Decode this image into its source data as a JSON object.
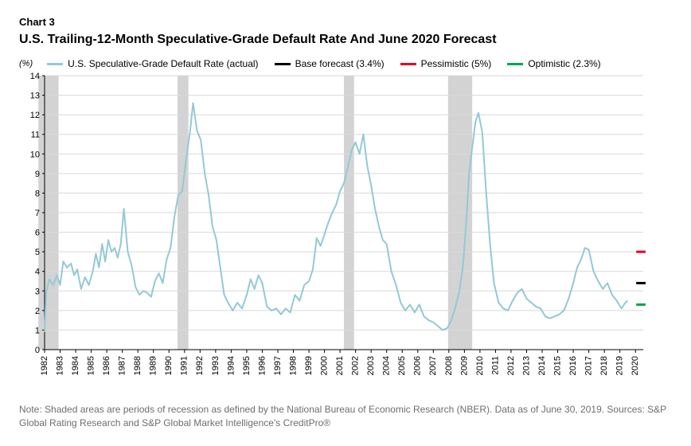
{
  "header": {
    "chart_label": "Chart 3",
    "title": "U.S. Trailing-12-Month Speculative-Grade Default Rate And June 2020 Forecast"
  },
  "legend": {
    "y_axis_unit": "(%)",
    "series_actual": "U.S. Speculative-Grade Default Rate (actual)",
    "base": "Base forecast (3.4%)",
    "pessimistic": "Pessimistic (5%)",
    "optimistic": "Optimistic (2.3%)"
  },
  "chart": {
    "type": "line",
    "background_color": "#ffffff",
    "grid_color": "#d9d9d9",
    "axis_color": "#000000",
    "tick_color": "#000000",
    "recession_band_color": "#d3d3d3",
    "line_color": "#93c9d6",
    "line_width": 2,
    "ylim": [
      0,
      14
    ],
    "ytick_step": 1,
    "x_start_year": 1982,
    "x_end_year": 2020.5,
    "x_ticks": [
      1982,
      1983,
      1984,
      1985,
      1986,
      1987,
      1988,
      1989,
      1990,
      1991,
      1992,
      1993,
      1994,
      1995,
      1996,
      1997,
      1998,
      1999,
      2000,
      2001,
      2002,
      2003,
      2004,
      2005,
      2006,
      2007,
      2008,
      2009,
      2010,
      2011,
      2012,
      2013,
      2014,
      2015,
      2016,
      2017,
      2018,
      2019,
      2020
    ],
    "tick_fontsize": 11,
    "recessions": [
      {
        "start": 1981.6,
        "end": 1982.9
      },
      {
        "start": 1990.55,
        "end": 1991.25
      },
      {
        "start": 2001.25,
        "end": 2001.9
      },
      {
        "start": 2007.95,
        "end": 2009.5
      }
    ],
    "series_actual": [
      {
        "x": 1982.0,
        "y": 0.9
      },
      {
        "x": 1982.1,
        "y": 2.9
      },
      {
        "x": 1982.3,
        "y": 3.6
      },
      {
        "x": 1982.55,
        "y": 3.3
      },
      {
        "x": 1982.8,
        "y": 3.8
      },
      {
        "x": 1983.0,
        "y": 3.3
      },
      {
        "x": 1983.2,
        "y": 4.5
      },
      {
        "x": 1983.45,
        "y": 4.2
      },
      {
        "x": 1983.7,
        "y": 4.4
      },
      {
        "x": 1983.9,
        "y": 3.8
      },
      {
        "x": 1984.1,
        "y": 4.1
      },
      {
        "x": 1984.35,
        "y": 3.1
      },
      {
        "x": 1984.6,
        "y": 3.7
      },
      {
        "x": 1984.85,
        "y": 3.3
      },
      {
        "x": 1985.1,
        "y": 4.0
      },
      {
        "x": 1985.3,
        "y": 4.9
      },
      {
        "x": 1985.5,
        "y": 4.2
      },
      {
        "x": 1985.7,
        "y": 5.4
      },
      {
        "x": 1985.9,
        "y": 4.5
      },
      {
        "x": 1986.1,
        "y": 5.6
      },
      {
        "x": 1986.3,
        "y": 5.0
      },
      {
        "x": 1986.5,
        "y": 5.2
      },
      {
        "x": 1986.7,
        "y": 4.7
      },
      {
        "x": 1986.9,
        "y": 5.4
      },
      {
        "x": 1987.1,
        "y": 7.2
      },
      {
        "x": 1987.35,
        "y": 5.0
      },
      {
        "x": 1987.6,
        "y": 4.3
      },
      {
        "x": 1987.85,
        "y": 3.2
      },
      {
        "x": 1988.1,
        "y": 2.8
      },
      {
        "x": 1988.35,
        "y": 3.0
      },
      {
        "x": 1988.6,
        "y": 2.9
      },
      {
        "x": 1988.85,
        "y": 2.7
      },
      {
        "x": 1989.1,
        "y": 3.5
      },
      {
        "x": 1989.35,
        "y": 3.9
      },
      {
        "x": 1989.6,
        "y": 3.4
      },
      {
        "x": 1989.85,
        "y": 4.6
      },
      {
        "x": 1990.1,
        "y": 5.2
      },
      {
        "x": 1990.35,
        "y": 6.8
      },
      {
        "x": 1990.6,
        "y": 7.9
      },
      {
        "x": 1990.85,
        "y": 8.1
      },
      {
        "x": 1991.1,
        "y": 9.7
      },
      {
        "x": 1991.35,
        "y": 11.1
      },
      {
        "x": 1991.55,
        "y": 12.6
      },
      {
        "x": 1991.8,
        "y": 11.2
      },
      {
        "x": 1992.05,
        "y": 10.7
      },
      {
        "x": 1992.3,
        "y": 9.0
      },
      {
        "x": 1992.55,
        "y": 7.9
      },
      {
        "x": 1992.8,
        "y": 6.3
      },
      {
        "x": 1993.05,
        "y": 5.6
      },
      {
        "x": 1993.3,
        "y": 4.2
      },
      {
        "x": 1993.55,
        "y": 2.8
      },
      {
        "x": 1993.8,
        "y": 2.4
      },
      {
        "x": 1994.1,
        "y": 2.0
      },
      {
        "x": 1994.4,
        "y": 2.4
      },
      {
        "x": 1994.7,
        "y": 2.1
      },
      {
        "x": 1995.0,
        "y": 2.8
      },
      {
        "x": 1995.25,
        "y": 3.6
      },
      {
        "x": 1995.5,
        "y": 3.1
      },
      {
        "x": 1995.75,
        "y": 3.8
      },
      {
        "x": 1996.0,
        "y": 3.4
      },
      {
        "x": 1996.3,
        "y": 2.2
      },
      {
        "x": 1996.6,
        "y": 2.0
      },
      {
        "x": 1996.9,
        "y": 2.1
      },
      {
        "x": 1997.2,
        "y": 1.8
      },
      {
        "x": 1997.5,
        "y": 2.1
      },
      {
        "x": 1997.8,
        "y": 1.9
      },
      {
        "x": 1998.1,
        "y": 2.8
      },
      {
        "x": 1998.4,
        "y": 2.5
      },
      {
        "x": 1998.7,
        "y": 3.3
      },
      {
        "x": 1999.0,
        "y": 3.5
      },
      {
        "x": 1999.25,
        "y": 4.1
      },
      {
        "x": 1999.5,
        "y": 5.7
      },
      {
        "x": 1999.75,
        "y": 5.3
      },
      {
        "x": 2000.0,
        "y": 5.9
      },
      {
        "x": 2000.25,
        "y": 6.5
      },
      {
        "x": 2000.5,
        "y": 7.0
      },
      {
        "x": 2000.75,
        "y": 7.4
      },
      {
        "x": 2001.0,
        "y": 8.1
      },
      {
        "x": 2001.25,
        "y": 8.5
      },
      {
        "x": 2001.5,
        "y": 9.3
      },
      {
        "x": 2001.75,
        "y": 10.2
      },
      {
        "x": 2002.0,
        "y": 10.6
      },
      {
        "x": 2002.25,
        "y": 10.0
      },
      {
        "x": 2002.5,
        "y": 11.0
      },
      {
        "x": 2002.75,
        "y": 9.4
      },
      {
        "x": 2003.0,
        "y": 8.4
      },
      {
        "x": 2003.25,
        "y": 7.2
      },
      {
        "x": 2003.5,
        "y": 6.3
      },
      {
        "x": 2003.75,
        "y": 5.6
      },
      {
        "x": 2004.0,
        "y": 5.4
      },
      {
        "x": 2004.3,
        "y": 4.0
      },
      {
        "x": 2004.6,
        "y": 3.3
      },
      {
        "x": 2004.9,
        "y": 2.4
      },
      {
        "x": 2005.2,
        "y": 2.0
      },
      {
        "x": 2005.5,
        "y": 2.3
      },
      {
        "x": 2005.8,
        "y": 1.9
      },
      {
        "x": 2006.1,
        "y": 2.3
      },
      {
        "x": 2006.4,
        "y": 1.7
      },
      {
        "x": 2006.7,
        "y": 1.5
      },
      {
        "x": 2007.0,
        "y": 1.4
      },
      {
        "x": 2007.3,
        "y": 1.2
      },
      {
        "x": 2007.6,
        "y": 1.0
      },
      {
        "x": 2007.9,
        "y": 1.1
      },
      {
        "x": 2008.15,
        "y": 1.5
      },
      {
        "x": 2008.4,
        "y": 2.1
      },
      {
        "x": 2008.65,
        "y": 2.9
      },
      {
        "x": 2008.9,
        "y": 4.2
      },
      {
        "x": 2009.1,
        "y": 6.3
      },
      {
        "x": 2009.3,
        "y": 9.0
      },
      {
        "x": 2009.5,
        "y": 10.3
      },
      {
        "x": 2009.7,
        "y": 11.6
      },
      {
        "x": 2009.9,
        "y": 12.1
      },
      {
        "x": 2010.15,
        "y": 11.1
      },
      {
        "x": 2010.4,
        "y": 8.0
      },
      {
        "x": 2010.65,
        "y": 5.4
      },
      {
        "x": 2010.9,
        "y": 3.4
      },
      {
        "x": 2011.2,
        "y": 2.4
      },
      {
        "x": 2011.5,
        "y": 2.1
      },
      {
        "x": 2011.8,
        "y": 2.0
      },
      {
        "x": 2012.1,
        "y": 2.5
      },
      {
        "x": 2012.4,
        "y": 2.9
      },
      {
        "x": 2012.7,
        "y": 3.1
      },
      {
        "x": 2013.0,
        "y": 2.6
      },
      {
        "x": 2013.3,
        "y": 2.4
      },
      {
        "x": 2013.6,
        "y": 2.2
      },
      {
        "x": 2013.9,
        "y": 2.1
      },
      {
        "x": 2014.2,
        "y": 1.7
      },
      {
        "x": 2014.5,
        "y": 1.6
      },
      {
        "x": 2014.8,
        "y": 1.7
      },
      {
        "x": 2015.1,
        "y": 1.8
      },
      {
        "x": 2015.4,
        "y": 2.0
      },
      {
        "x": 2015.7,
        "y": 2.6
      },
      {
        "x": 2016.0,
        "y": 3.4
      },
      {
        "x": 2016.25,
        "y": 4.2
      },
      {
        "x": 2016.5,
        "y": 4.6
      },
      {
        "x": 2016.75,
        "y": 5.2
      },
      {
        "x": 2017.0,
        "y": 5.1
      },
      {
        "x": 2017.3,
        "y": 4.0
      },
      {
        "x": 2017.6,
        "y": 3.5
      },
      {
        "x": 2017.9,
        "y": 3.1
      },
      {
        "x": 2018.2,
        "y": 3.4
      },
      {
        "x": 2018.5,
        "y": 2.8
      },
      {
        "x": 2018.8,
        "y": 2.5
      },
      {
        "x": 2019.1,
        "y": 2.1
      },
      {
        "x": 2019.35,
        "y": 2.4
      },
      {
        "x": 2019.5,
        "y": 2.5
      }
    ],
    "forecast_markers": {
      "x": 2020.35,
      "segment_half_width": 0.3,
      "pessimistic": {
        "y": 5.0,
        "color": "#e4002b",
        "width": 3
      },
      "base": {
        "y": 3.4,
        "color": "#000000",
        "width": 3
      },
      "optimistic": {
        "y": 2.3,
        "color": "#00a651",
        "width": 3
      }
    }
  },
  "note": "Note: Shaded areas are periods of recession as defined by the National Bureau of Economic Research (NBER). Data as of June 30, 2019. Sources: S&P Global Rating Research and S&P Global Market Intelligence's CreditPro®"
}
